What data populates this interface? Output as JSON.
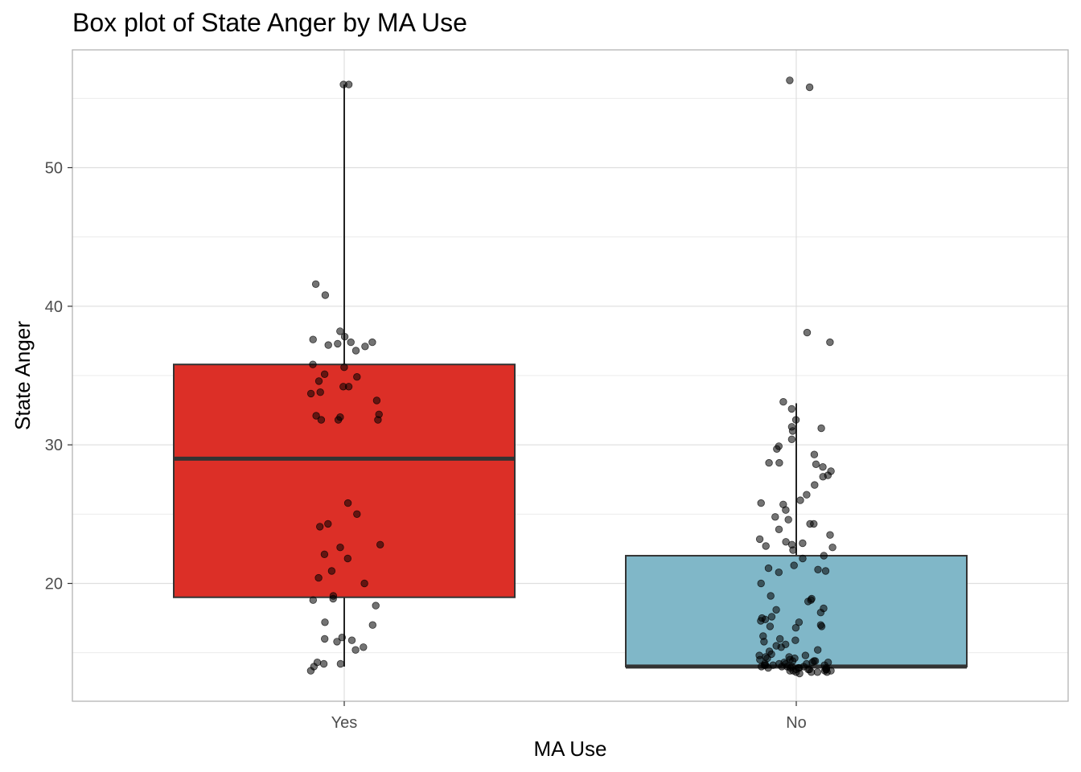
{
  "chart_data": {
    "type": "box",
    "title": "Box plot of State Anger by MA Use",
    "xlabel": "MA Use",
    "ylabel": "State Anger",
    "ylim": [
      11.5,
      58.5
    ],
    "y_ticks": [
      20,
      30,
      40,
      50
    ],
    "grid": true,
    "legend": "none",
    "categories": [
      "Yes",
      "No"
    ],
    "boxes": [
      {
        "category": "Yes",
        "fill": "#DC2F27",
        "q1": 19,
        "median": 29,
        "q3": 35.8,
        "whisker_low": 14,
        "whisker_high": 56
      },
      {
        "category": "No",
        "fill": "#80B7C8",
        "q1": 14,
        "median": 14,
        "q3": 22,
        "whisker_low": 14,
        "whisker_high": 33
      }
    ],
    "points": [
      {
        "category": "Yes",
        "values": [
          56,
          56,
          41.6,
          40.8,
          38.2,
          37.8,
          37.6,
          37.4,
          37.4,
          37.3,
          37.2,
          37.1,
          36.8,
          35.8,
          35.6,
          35.1,
          34.9,
          34.6,
          34.2,
          34.2,
          33.8,
          33.7,
          33.2,
          32.2,
          32.1,
          32.0,
          31.8,
          31.8,
          31.8,
          25.8,
          25.0,
          24.3,
          24.1,
          22.8,
          22.6,
          22.1,
          21.8,
          20.9,
          20.4,
          20.0,
          19.1,
          18.9,
          18.8,
          18.4,
          17.2,
          17.0,
          16.1,
          16.0,
          15.9,
          15.8,
          15.4,
          15.2,
          14.3,
          14.2,
          14.2,
          14.0,
          13.7
        ]
      },
      {
        "category": "No",
        "values": [
          56.3,
          55.8,
          38.1,
          37.4,
          33.1,
          32.6,
          31.8,
          31.3,
          31.2,
          31.0,
          30.4,
          29.9,
          29.7,
          29.3,
          28.7,
          28.7,
          28.6,
          28.4,
          28.1,
          27.8,
          27.7,
          27.1,
          26.4,
          26.0,
          25.8,
          25.7,
          25.3,
          24.8,
          24.6,
          24.3,
          24.3,
          23.9,
          23.5,
          23.2,
          23.0,
          22.9,
          22.8,
          22.7,
          22.6,
          22.4,
          22.0,
          21.8,
          21.3,
          21.1,
          21.0,
          20.9,
          20.8,
          20.0,
          19.1,
          18.9,
          18.8,
          18.7,
          18.2,
          18.1,
          17.9,
          17.6,
          17.5,
          17.4,
          17.3,
          17.2,
          17.0,
          16.9,
          16.9,
          16.8,
          16.2,
          16.0,
          15.9,
          15.8,
          15.6,
          15.5,
          15.4,
          15.2,
          15.1,
          14.9,
          14.8,
          14.8,
          14.7,
          14.7,
          14.6,
          14.6,
          14.5,
          14.5,
          14.4,
          14.4,
          14.4,
          14.3,
          14.3,
          14.3,
          14.2,
          14.2,
          14.2,
          14.2,
          14.1,
          14.1,
          14.1,
          14.1,
          14.0,
          14.0,
          14.0,
          14.0,
          14.0,
          13.9,
          13.9,
          13.9,
          13.9,
          13.9,
          13.8,
          13.8,
          13.8,
          13.8,
          13.8,
          13.7,
          13.7,
          13.7,
          13.7,
          13.6,
          13.6,
          13.6,
          13.6,
          13.5
        ]
      }
    ]
  }
}
